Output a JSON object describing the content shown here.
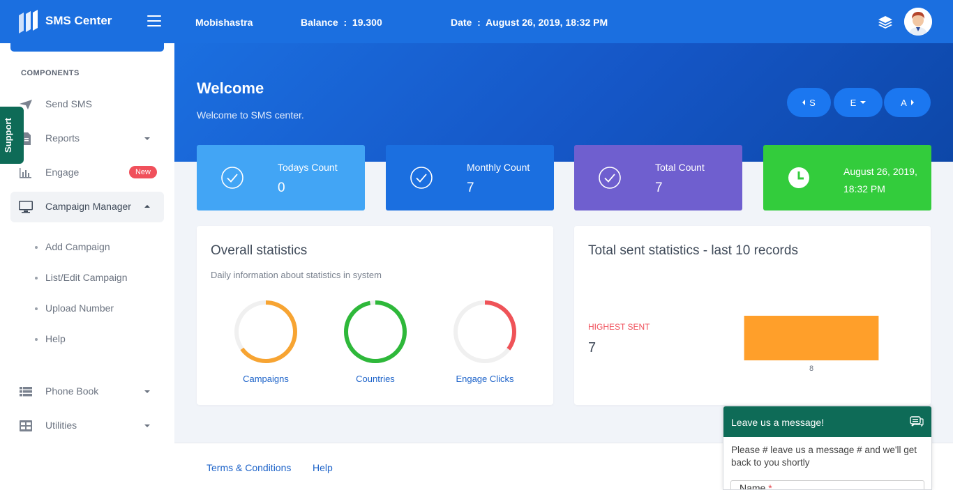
{
  "brand": {
    "title": "SMS Center"
  },
  "sidebar": {
    "section_label": "COMPONENTS",
    "items": [
      {
        "label": "Send SMS",
        "icon": "send-icon"
      },
      {
        "label": "Reports",
        "icon": "document-icon"
      },
      {
        "label": "Engage",
        "icon": "bar-chart-icon",
        "badge": "New"
      },
      {
        "label": "Campaign Manager",
        "icon": "monitor-icon"
      },
      {
        "label": "Phone Book",
        "icon": "list-icon"
      },
      {
        "label": "Utilities",
        "icon": "grid-icon"
      }
    ],
    "sub_items": [
      "Add Campaign",
      "List/Edit Campaign",
      "Upload Number",
      "Help"
    ]
  },
  "support_tab": {
    "label": "Support"
  },
  "topbar": {
    "org": "Mobishastra",
    "balance": "Balance  :  19.300",
    "date": "Date  :  August 26, 2019, 18:32 PM"
  },
  "hero": {
    "title": "Welcome",
    "subtitle": "Welcome to SMS center.",
    "buttons": [
      "S",
      "E",
      "A"
    ]
  },
  "stats": [
    {
      "label": "Todays Count",
      "value": "0",
      "color": "#42a5f5",
      "icon": "check-circle-icon"
    },
    {
      "label": "Monthly Count",
      "value": "7",
      "color": "#1b6fe0",
      "icon": "check-circle-icon"
    },
    {
      "label": "Total Count",
      "value": "7",
      "color": "#6f5fcf",
      "icon": "check-circle-icon"
    },
    {
      "date_line1": "August 26, 2019,",
      "date_line2": "18:32 PM",
      "color": "#33cc3c",
      "icon": "clock-icon"
    }
  ],
  "overall": {
    "title": "Overall statistics",
    "subtitle": "Daily information about statistics in system",
    "donuts": [
      {
        "label": "Campaigns",
        "color": "#f7a432",
        "fraction": 0.65
      },
      {
        "label": "Countries",
        "color": "#2eb83a",
        "fraction": 0.97
      },
      {
        "label": "Engage Clicks",
        "color": "#ef5358",
        "fraction": 0.35
      }
    ]
  },
  "sent_stats": {
    "title": "Total sent statistics - last 10 records",
    "highest_label": "HIGHEST SENT",
    "highest_value": "7"
  },
  "chart_data": {
    "type": "bar",
    "categories": [
      "8"
    ],
    "values": [
      7
    ],
    "title": "Total sent statistics - last 10 records",
    "xlabel": "",
    "ylabel": "",
    "colors": [
      "#ff9f2a"
    ]
  },
  "footer": {
    "links": [
      "Terms & Conditions",
      "Help"
    ]
  },
  "chat": {
    "header": "Leave us a message!",
    "message": "Please # leave us a message # and we'll get back to you shortly",
    "field_label": "Name",
    "required_mark": "*"
  }
}
